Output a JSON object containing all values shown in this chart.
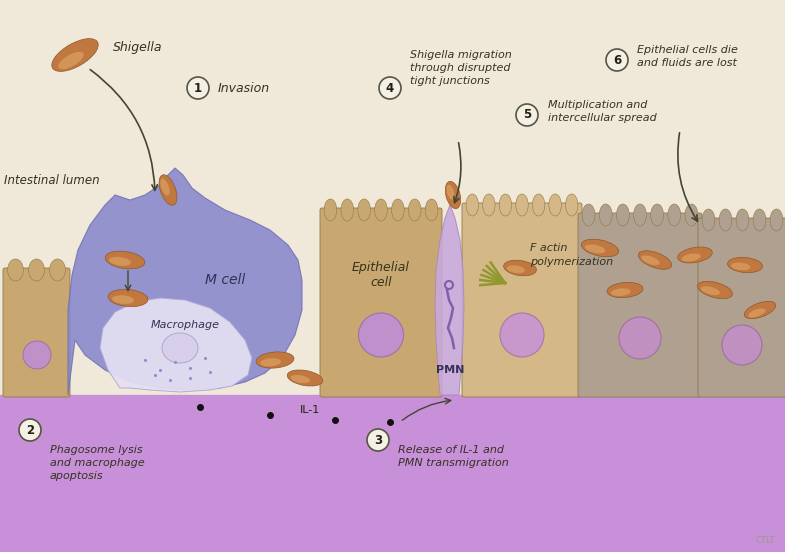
{
  "bg_color": "#f0e8d8",
  "purple_band_color": "#c890d8",
  "tan_cell": "#c8a870",
  "tan_cell2": "#d4b888",
  "gray_tan": "#b0a090",
  "m_cell_color": "#8888cc",
  "macrophage_color": "#ddd8ee",
  "pmn_color": "#c8a8d8",
  "bacteria_color": "#c07840",
  "bacteria_highlight": "#d89050",
  "nucleus_purple": "#c090cc",
  "label_color": "#333322",
  "arrow_color": "#444433",
  "figsize": [
    7.85,
    5.52
  ],
  "dpi": 100,
  "labels": {
    "shigella": "Shigella",
    "intestinal_lumen": "Intestinal lumen",
    "invasion": "Invasion",
    "phagosome": "Phagosome lysis\nand macrophage\napoptosis",
    "release_il1": "Release of IL-1 and\nPMN transmigration",
    "shigella_mig": "Shigella migration\nthrough disrupted\ntight junctions",
    "multiplication": "Multiplication and\nintercellular spread",
    "epithelial_die": "Epithelial cells die\nand fluids are lost",
    "m_cell": "M cell",
    "macrophage": "Macrophage",
    "epithelial_cell": "Epithelial\ncell",
    "pmn": "PMN",
    "f_actin": "F actin\npolymerization",
    "il1": "IL-1"
  }
}
